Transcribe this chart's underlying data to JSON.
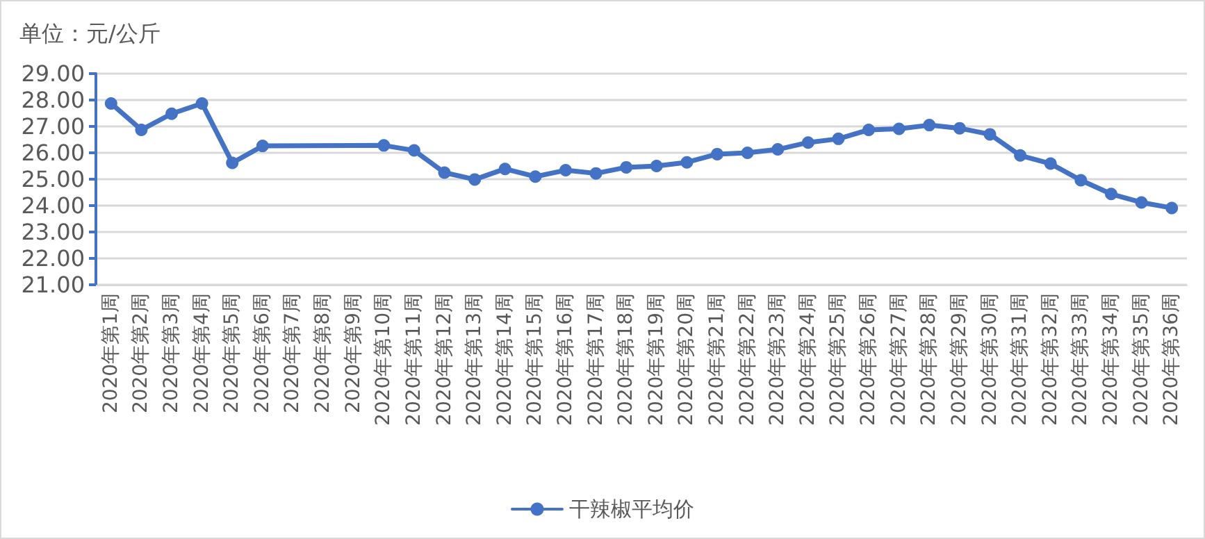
{
  "chart_data": {
    "type": "line",
    "ylabel": "单位：元/公斤",
    "categories": [
      "2020年第1周",
      "2020年第2周",
      "2020年第3周",
      "2020年第4周",
      "2020年第5周",
      "2020年第6周",
      "2020年第7周",
      "2020年第8周",
      "2020年第9周",
      "2020年第10周",
      "2020年第11周",
      "2020年第12周",
      "2020年第13周",
      "2020年第14周",
      "2020年第15周",
      "2020年第16周",
      "2020年第17周",
      "2020年第18周",
      "2020年第19周",
      "2020年第20周",
      "2020年第21周",
      "2020年第22周",
      "2020年第23周",
      "2020年第24周",
      "2020年第25周",
      "2020年第26周",
      "2020年第27周",
      "2020年第28周",
      "2020年第29周",
      "2020年第30周",
      "2020年第31周",
      "2020年第32周",
      "2020年第33周",
      "2020年第34周",
      "2020年第35周",
      "2020年第36周"
    ],
    "series": [
      {
        "name": "干辣椒平均价",
        "color": "#4472c4",
        "values": [
          27.87,
          26.87,
          27.48,
          27.87,
          25.62,
          26.26,
          null,
          null,
          null,
          26.28,
          26.09,
          25.25,
          24.99,
          25.39,
          25.1,
          25.34,
          25.22,
          25.45,
          25.5,
          25.64,
          25.95,
          26.0,
          26.13,
          26.39,
          26.53,
          26.87,
          26.91,
          27.05,
          26.93,
          26.7,
          25.9,
          25.59,
          24.96,
          24.44,
          24.12,
          23.91
        ]
      }
    ],
    "ylim": [
      21,
      29
    ],
    "yticks": [
      {
        "value": 21,
        "label": "21.00"
      },
      {
        "value": 22,
        "label": "22.00"
      },
      {
        "value": 23,
        "label": "23.00"
      },
      {
        "value": 24,
        "label": "24.00"
      },
      {
        "value": 25,
        "label": "25.00"
      },
      {
        "value": 26,
        "label": "26.00"
      },
      {
        "value": 27,
        "label": "27.00"
      },
      {
        "value": 28,
        "label": "28.00"
      },
      {
        "value": 29,
        "label": "29.00"
      }
    ],
    "grid": "y",
    "legend": "bottom",
    "marker": "circle",
    "line_style": "solid"
  }
}
